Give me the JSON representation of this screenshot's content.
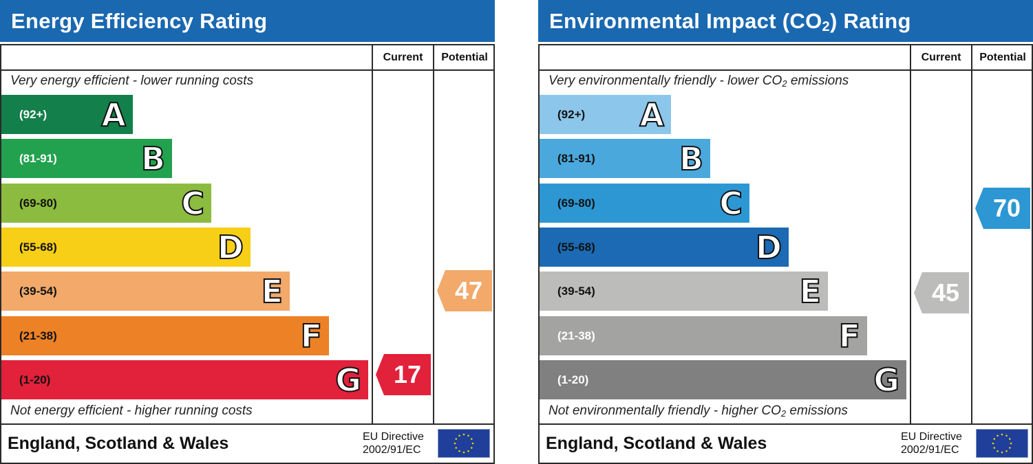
{
  "charts": [
    {
      "title": "Energy Efficiency Rating",
      "columns": {
        "current": "Current",
        "potential": "Potential"
      },
      "top_note": "Very energy efficient - lower running costs",
      "bottom_note": "Not energy efficient - higher running costs",
      "footer": {
        "country": "England, Scotland & Wales",
        "directive_line1": "EU Directive",
        "directive_line2": "2002/91/EC"
      }
    },
    {
      "title": "Environmental Impact (CO",
      "title_sub": "2",
      "title_end": ") Rating",
      "columns": {
        "current": "Current",
        "potential": "Potential"
      },
      "top_note": "Very environmentally friendly - lower CO",
      "top_note_sub": "2",
      "top_note_end": " emissions",
      "bottom_note": "Not environmentally friendly - higher CO",
      "bottom_note_sub": "2",
      "bottom_note_end": " emissions",
      "footer": {
        "country": "England, Scotland & Wales",
        "directive_line1": "EU Directive",
        "directive_line2": "2002/91/EC"
      }
    }
  ],
  "chart_data": [
    {
      "type": "bar",
      "title": "Energy Efficiency Rating",
      "categories": [
        "A",
        "B",
        "C",
        "D",
        "E",
        "F",
        "G"
      ],
      "ranges": [
        "(92+)",
        "(81-91)",
        "(69-80)",
        "(55-68)",
        "(39-54)",
        "(21-38)",
        "(1-20)"
      ],
      "colors": [
        "#137f4a",
        "#22a14e",
        "#8cbc3f",
        "#f7cf17",
        "#f2a96a",
        "#ed8126",
        "#e2213a"
      ],
      "range_text_colors": [
        "#ffffff",
        "#ffffff",
        "#111111",
        "#111111",
        "#111111",
        "#111111",
        "#111111"
      ],
      "current": {
        "label": "Current",
        "value": 17,
        "band": "G",
        "color": "#e2213a"
      },
      "potential": {
        "label": "Potential",
        "value": 47,
        "band": "E",
        "color": "#f2a96a"
      }
    },
    {
      "type": "bar",
      "title": "Environmental Impact (CO2) Rating",
      "categories": [
        "A",
        "B",
        "C",
        "D",
        "E",
        "F",
        "G"
      ],
      "ranges": [
        "(92+)",
        "(81-91)",
        "(69-80)",
        "(55-68)",
        "(39-54)",
        "(21-38)",
        "(1-20)"
      ],
      "colors": [
        "#8cc6ea",
        "#4aa8dd",
        "#2d97d4",
        "#1b6ab3",
        "#bcbcbb",
        "#a3a3a2",
        "#808080"
      ],
      "range_text_colors": [
        "#111111",
        "#111111",
        "#111111",
        "#111111",
        "#111111",
        "#ffffff",
        "#ffffff"
      ],
      "current": {
        "label": "Current",
        "value": 45,
        "band": "E",
        "color": "#bcbcbb"
      },
      "potential": {
        "label": "Potential",
        "value": 70,
        "band": "C",
        "color": "#2d97d4"
      }
    }
  ]
}
